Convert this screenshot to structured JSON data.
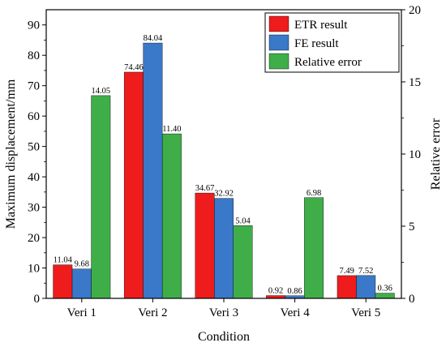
{
  "chart_data": {
    "type": "bar",
    "xlabel": "Condition",
    "ylabel": "Maximum displacement/mm",
    "y2label": "Relative error",
    "ylim": [
      0,
      95
    ],
    "y2lim": [
      0,
      20
    ],
    "yticks": [
      0,
      10,
      20,
      30,
      40,
      50,
      60,
      70,
      80,
      90
    ],
    "y2ticks": [
      0,
      5,
      10,
      15,
      20
    ],
    "categories": [
      "Veri 1",
      "Veri 2",
      "Veri 3",
      "Veri 4",
      "Veri 5"
    ],
    "legend_position": "top-right",
    "grid": false,
    "series": [
      {
        "name": "ETR result",
        "axis": "left",
        "color": "#ee1c1c",
        "values": [
          11.04,
          74.46,
          34.67,
          0.92,
          7.49
        ],
        "labels": [
          "11.04",
          "74.46",
          "34.67",
          "0.92",
          "7.49"
        ]
      },
      {
        "name": "FE result",
        "axis": "left",
        "color": "#3a78c9",
        "values": [
          9.68,
          84.04,
          32.92,
          0.86,
          7.52
        ],
        "labels": [
          "9.68",
          "84.04",
          "32.92",
          "0.86",
          "7.52"
        ]
      },
      {
        "name": "Relative error",
        "axis": "right",
        "color": "#3fae49",
        "values": [
          14.05,
          11.4,
          5.04,
          6.98,
          0.36
        ],
        "labels": [
          "14.05",
          "11.40",
          "5.04",
          "6.98",
          "0.36"
        ]
      }
    ]
  }
}
